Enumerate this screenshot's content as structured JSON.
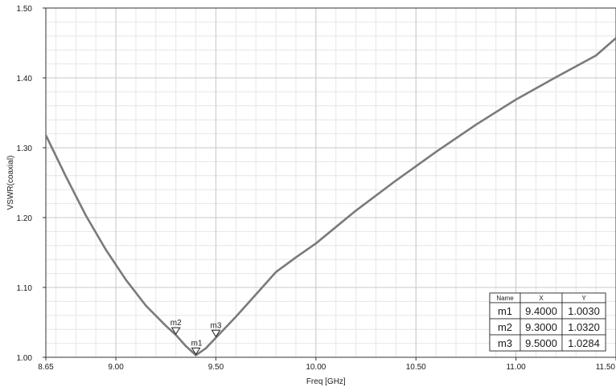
{
  "chart_data": {
    "type": "line",
    "title": "",
    "xlabel": "Freq [GHz]",
    "ylabel": "VSWR(coaxial)",
    "xlim": [
      8.65,
      11.5
    ],
    "ylim": [
      1.0,
      1.5
    ],
    "grid": true,
    "x_ticks": [
      8.65,
      9.0,
      9.5,
      10.0,
      10.5,
      11.0,
      11.5
    ],
    "x_tick_labels": [
      "8.65",
      "9.00",
      "9.50",
      "10.00",
      "10.50",
      "11.00",
      "11.50"
    ],
    "y_ticks": [
      1.0,
      1.1,
      1.2,
      1.3,
      1.4,
      1.5
    ],
    "y_tick_labels": [
      "1.00",
      "1.10",
      "1.20",
      "1.30",
      "1.40",
      "1.50"
    ],
    "series": [
      {
        "color": "#7a7a7a",
        "x": [
          8.65,
          8.75,
          8.85,
          8.95,
          9.05,
          9.15,
          9.25,
          9.3,
          9.35,
          9.4,
          9.45,
          9.5,
          9.6,
          9.7,
          9.8,
          9.9,
          10.0,
          10.2,
          10.4,
          10.6,
          10.8,
          11.0,
          11.2,
          11.4,
          11.5
        ],
        "y": [
          1.318,
          1.259,
          1.203,
          1.154,
          1.111,
          1.074,
          1.045,
          1.032,
          1.016,
          1.003,
          1.013,
          1.028,
          1.058,
          1.09,
          1.122,
          1.143,
          1.163,
          1.21,
          1.253,
          1.294,
          1.333,
          1.369,
          1.401,
          1.432,
          1.457
        ]
      }
    ],
    "markers": [
      {
        "name": "m1",
        "x": 9.4,
        "y": 1.003
      },
      {
        "name": "m2",
        "x": 9.3,
        "y": 1.032
      },
      {
        "name": "m3",
        "x": 9.5,
        "y": 1.0284
      }
    ],
    "marker_table": {
      "headers": [
        "Name",
        "X",
        "Y"
      ],
      "rows": [
        [
          "m1",
          "9.4000",
          "1.0030"
        ],
        [
          "m2",
          "9.3000",
          "1.0320"
        ],
        [
          "m3",
          "9.5000",
          "1.0284"
        ]
      ]
    }
  }
}
